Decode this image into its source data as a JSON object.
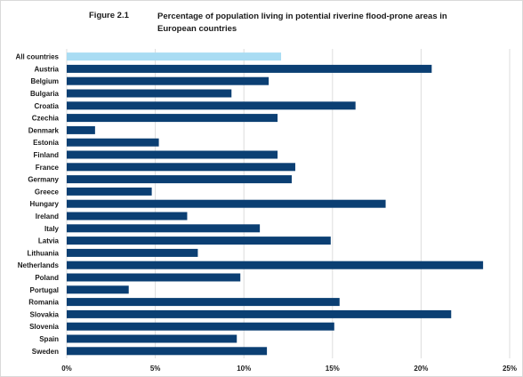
{
  "figure": {
    "number": "Figure 2.1",
    "title": "Percentage of population living in potential riverine flood-prone areas in European countries"
  },
  "colors": {
    "highlight": "#a9dcf3",
    "bar": "#0b3f73",
    "grid": "#dddddd"
  },
  "chart_data": {
    "type": "bar",
    "orientation": "horizontal",
    "title": "",
    "xlabel": "",
    "ylabel": "",
    "xlim": [
      0,
      25
    ],
    "grid": "vertical",
    "ticks": [
      0,
      5,
      10,
      15,
      20,
      25
    ],
    "tick_labels": [
      "0%",
      "5%",
      "10%",
      "15%",
      "20%",
      "25%"
    ],
    "categories": [
      "All countries",
      "Austria",
      "Belgium",
      "Bulgaria",
      "Croatia",
      "Czechia",
      "Denmark",
      "Estonia",
      "Finland",
      "France",
      "Germany",
      "Greece",
      "Hungary",
      "Ireland",
      "Italy",
      "Latvia",
      "Lithuania",
      "Netherlands",
      "Poland",
      "Portugal",
      "Romania",
      "Slovakia",
      "Slovenia",
      "Spain",
      "Sweden"
    ],
    "values": [
      12.1,
      20.6,
      11.4,
      9.3,
      16.3,
      11.9,
      1.6,
      5.2,
      11.9,
      12.9,
      12.7,
      4.8,
      18.0,
      6.8,
      10.9,
      14.9,
      7.4,
      23.5,
      9.8,
      3.5,
      15.4,
      21.7,
      15.1,
      9.6,
      11.3
    ],
    "highlight_index": 0
  }
}
